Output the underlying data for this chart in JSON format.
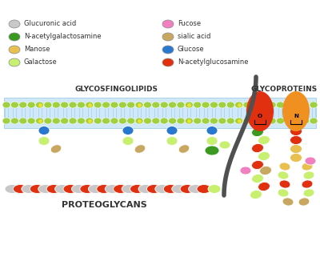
{
  "bg_color": "#ffffff",
  "colors": {
    "galactose": "#c8f070",
    "manose": "#e8c050",
    "n_acetylgalactosamine": "#3a9a20",
    "glucuronic_acid": "#c8c8c8",
    "n_acetylglucosamine": "#e03010",
    "glucose": "#2878d0",
    "sialic_acid": "#c8a860",
    "fucose": "#f080c0",
    "lipid_head": "#a0d040",
    "lipid_tail": "#a8d8f0",
    "protein_red": "#e03010",
    "protein_orange": "#f09020",
    "membrane_bg": "#d0e8f8",
    "curve_color": "#505050"
  },
  "labels": {
    "proteoglycans": "PROTEOGLYCANS",
    "glycosfingolipids": "GLYCOSFINGOLIPIDS",
    "glycoproteins": "GLYCOPROTEINS",
    "galactose": "Galactose",
    "manose": "Manose",
    "n_acetylgalactosamine": "N-acetylgalactosamine",
    "glucuronic_acid": "Glucuronic acid",
    "n_acetylglucosamine": "N-acetylglucosamine",
    "glucose": "Glucose",
    "sialic_acid": "sialic acid",
    "fucose": "Fucose"
  },
  "fig_w": 4.0,
  "fig_h": 3.26,
  "dpi": 100
}
